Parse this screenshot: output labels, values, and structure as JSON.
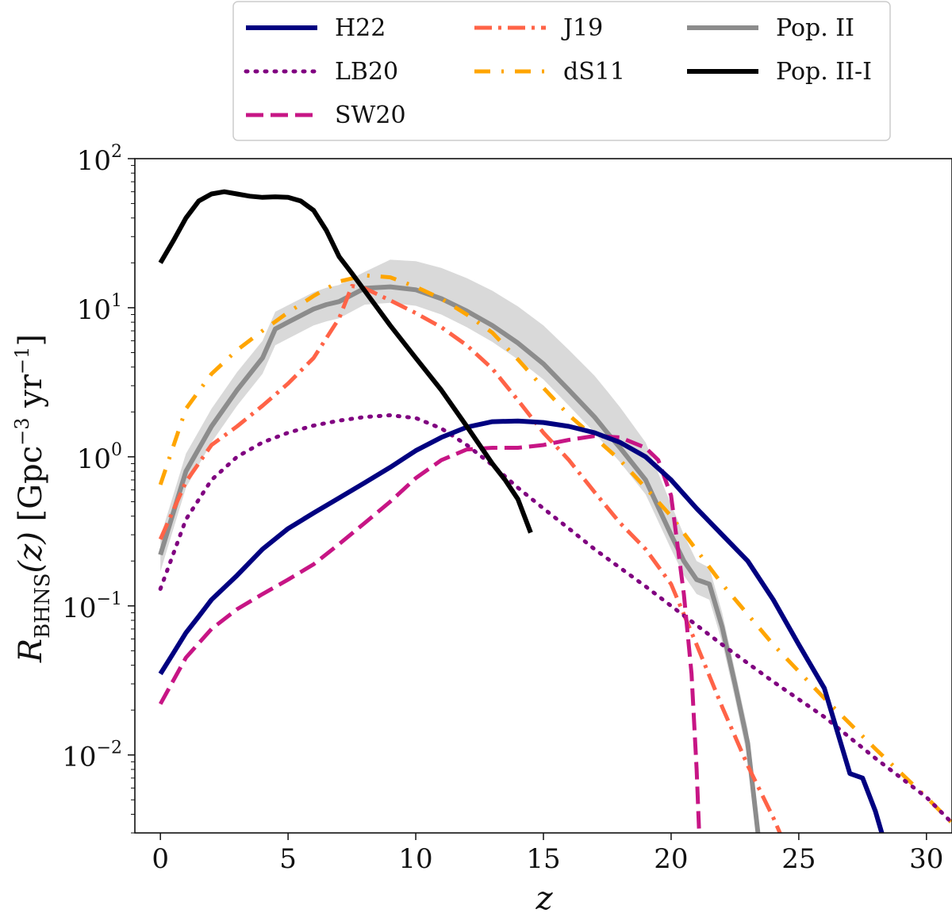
{
  "chart_data": {
    "type": "line",
    "title": "",
    "xlabel": "z",
    "ylabel": "R_BHNS(z) [Gpc^-3 yr^-1]",
    "ylabel_parts": {
      "symbol": "R",
      "subscript": "BHNS",
      "arg": "(z)",
      "units": "[Gpc",
      "u_exp1": "−3",
      "units2": "yr",
      "u_exp2": "−1",
      "close": "]"
    },
    "xlim": [
      -1,
      31
    ],
    "ylim": [
      0.003,
      100
    ],
    "yscale": "log",
    "x_ticks": [
      0,
      5,
      10,
      15,
      20,
      25,
      30
    ],
    "x_tick_labels": [
      "0",
      "5",
      "10",
      "15",
      "20",
      "25",
      "30"
    ],
    "y_ticks": [
      {
        "value": 100,
        "base": "10",
        "exp": "2"
      },
      {
        "value": 10,
        "base": "10",
        "exp": "1"
      },
      {
        "value": 1,
        "base": "10",
        "exp": "0"
      },
      {
        "value": 0.1,
        "base": "10",
        "exp": "−1"
      },
      {
        "value": 0.01,
        "base": "10",
        "exp": "−2"
      }
    ],
    "legend": {
      "position": "top-outside",
      "entries": [
        "H22",
        "LB20",
        "SW20",
        "J19",
        "dS11",
        "Pop. II",
        "Pop. II-I"
      ]
    },
    "series": [
      {
        "name": "H22",
        "color": "#000080",
        "style": "solid",
        "width": 6,
        "x": [
          0,
          0.5,
          1,
          1.5,
          2,
          3,
          4,
          5,
          6,
          7,
          8,
          9,
          10,
          11,
          12,
          13,
          14,
          15,
          16,
          17,
          18,
          19,
          20,
          21,
          22,
          23,
          24,
          25,
          26,
          27,
          27.5,
          28,
          28.3
        ],
        "y": [
          0.035,
          0.048,
          0.066,
          0.085,
          0.11,
          0.16,
          0.24,
          0.33,
          0.42,
          0.53,
          0.67,
          0.85,
          1.1,
          1.35,
          1.58,
          1.72,
          1.74,
          1.7,
          1.6,
          1.45,
          1.25,
          1.0,
          0.7,
          0.45,
          0.3,
          0.2,
          0.11,
          0.055,
          0.028,
          0.0075,
          0.007,
          0.0042,
          0.0028
        ]
      },
      {
        "name": "LB20",
        "color": "#800080",
        "style": "dotted",
        "width": 5,
        "x": [
          0,
          1,
          2,
          3,
          4,
          5,
          6,
          7,
          8,
          9,
          10,
          11,
          12,
          13,
          14,
          15,
          16,
          17,
          18,
          19,
          20,
          22,
          24,
          26,
          28,
          30,
          31
        ],
        "y": [
          0.13,
          0.38,
          0.7,
          1.0,
          1.25,
          1.45,
          1.62,
          1.75,
          1.85,
          1.9,
          1.82,
          1.55,
          1.2,
          0.88,
          0.62,
          0.45,
          0.33,
          0.24,
          0.18,
          0.135,
          0.1,
          0.055,
          0.031,
          0.018,
          0.0095,
          0.0052,
          0.0035
        ]
      },
      {
        "name": "SW20",
        "color": "#C71585",
        "style": "dashed",
        "width": 5,
        "x": [
          0,
          1,
          2,
          3,
          4,
          5,
          6,
          7,
          8,
          9,
          10,
          11,
          12,
          13,
          14,
          15,
          16,
          17,
          18,
          19,
          19.5,
          20,
          20.5,
          20.8,
          21,
          21.1
        ],
        "y": [
          0.022,
          0.045,
          0.07,
          0.095,
          0.12,
          0.15,
          0.19,
          0.26,
          0.36,
          0.5,
          0.72,
          0.95,
          1.12,
          1.15,
          1.15,
          1.2,
          1.3,
          1.38,
          1.35,
          1.15,
          0.95,
          0.55,
          0.12,
          0.035,
          0.008,
          0.003
        ]
      },
      {
        "name": "J19",
        "color": "#FF6347",
        "style": "dashdot",
        "width": 5,
        "x": [
          0,
          1,
          2,
          3,
          4,
          5,
          6,
          7,
          7.5,
          8,
          9,
          10,
          11,
          12,
          13,
          14,
          15,
          16,
          17,
          18,
          19,
          20,
          21,
          22,
          23,
          24,
          24.3
        ],
        "y": [
          0.28,
          0.68,
          1.2,
          1.6,
          2.2,
          3.1,
          4.6,
          8.5,
          14,
          13.5,
          11.2,
          9.2,
          7.4,
          5.6,
          3.9,
          2.4,
          1.45,
          0.95,
          0.58,
          0.36,
          0.24,
          0.14,
          0.055,
          0.021,
          0.0085,
          0.0038,
          0.0029
        ]
      },
      {
        "name": "dS11",
        "color": "#FFA500",
        "style": "dashdot-sparse",
        "width": 5,
        "x": [
          0,
          1,
          2,
          3,
          4,
          5,
          6,
          7,
          8,
          9,
          10,
          11,
          12,
          13,
          14,
          15,
          16,
          17,
          18,
          19,
          20,
          22,
          24,
          26,
          28,
          30,
          31
        ],
        "y": [
          0.65,
          2.1,
          3.6,
          5.2,
          7.0,
          9.3,
          12.0,
          15.0,
          16.5,
          16.0,
          13.8,
          11.5,
          9.0,
          6.8,
          4.5,
          2.9,
          1.9,
          1.35,
          0.95,
          0.62,
          0.4,
          0.14,
          0.055,
          0.024,
          0.011,
          0.0052,
          0.0035
        ]
      },
      {
        "name": "Pop. II",
        "color": "#8C8C8C",
        "style": "solid",
        "width": 6,
        "band_color": "#D9D9D9",
        "x": [
          0,
          1,
          2,
          3,
          4,
          4.5,
          5,
          6,
          6.5,
          7,
          8,
          9,
          10,
          11,
          12,
          13,
          14,
          15,
          16,
          17,
          17.5,
          18,
          19,
          20,
          20.5,
          21,
          21.5,
          22,
          22.5,
          23,
          23.4
        ],
        "y": [
          0.22,
          0.8,
          1.6,
          2.8,
          4.6,
          7.2,
          8.0,
          9.8,
          10.5,
          11.0,
          13.5,
          13.8,
          13.2,
          11.5,
          9.5,
          7.6,
          5.8,
          4.2,
          2.8,
          1.85,
          1.45,
          1.15,
          0.7,
          0.3,
          0.2,
          0.15,
          0.14,
          0.072,
          0.03,
          0.012,
          0.003
        ],
        "y_low": [
          0.17,
          0.62,
          1.25,
          2.2,
          3.6,
          5.6,
          6.2,
          7.6,
          8.1,
          8.5,
          10.5,
          10.8,
          10.3,
          9.0,
          7.4,
          5.9,
          4.5,
          3.3,
          2.2,
          1.45,
          1.15,
          0.92,
          0.56,
          0.24,
          0.16,
          0.12,
          0.11,
          0.057,
          0.024,
          0.0095,
          0.003
        ],
        "y_high": [
          0.29,
          1.05,
          2.1,
          3.7,
          6.0,
          9.4,
          10.4,
          12.7,
          13.6,
          14.2,
          17.4,
          21.0,
          20.5,
          18.5,
          15.8,
          13.0,
          10.2,
          7.6,
          5.2,
          3.5,
          2.75,
          2.15,
          1.25,
          0.48,
          0.3,
          0.2,
          0.18,
          0.09,
          0.037,
          0.015,
          0.0034
        ]
      },
      {
        "name": "Pop. II-I",
        "color": "#000000",
        "style": "solid",
        "width": 6,
        "x": [
          0,
          0.5,
          1,
          1.5,
          2,
          2.5,
          3,
          3.5,
          4,
          4.5,
          5,
          5.5,
          6,
          6.5,
          7,
          7.5,
          8,
          9,
          10,
          11,
          12,
          12.5,
          13,
          13.5,
          14,
          14.5
        ],
        "y": [
          20,
          28,
          40,
          52,
          58,
          60,
          58,
          56,
          55,
          55.5,
          55,
          52,
          45,
          33,
          22,
          17,
          13,
          7.6,
          4.6,
          2.8,
          1.6,
          1.2,
          0.9,
          0.7,
          0.52,
          0.31
        ]
      }
    ]
  }
}
